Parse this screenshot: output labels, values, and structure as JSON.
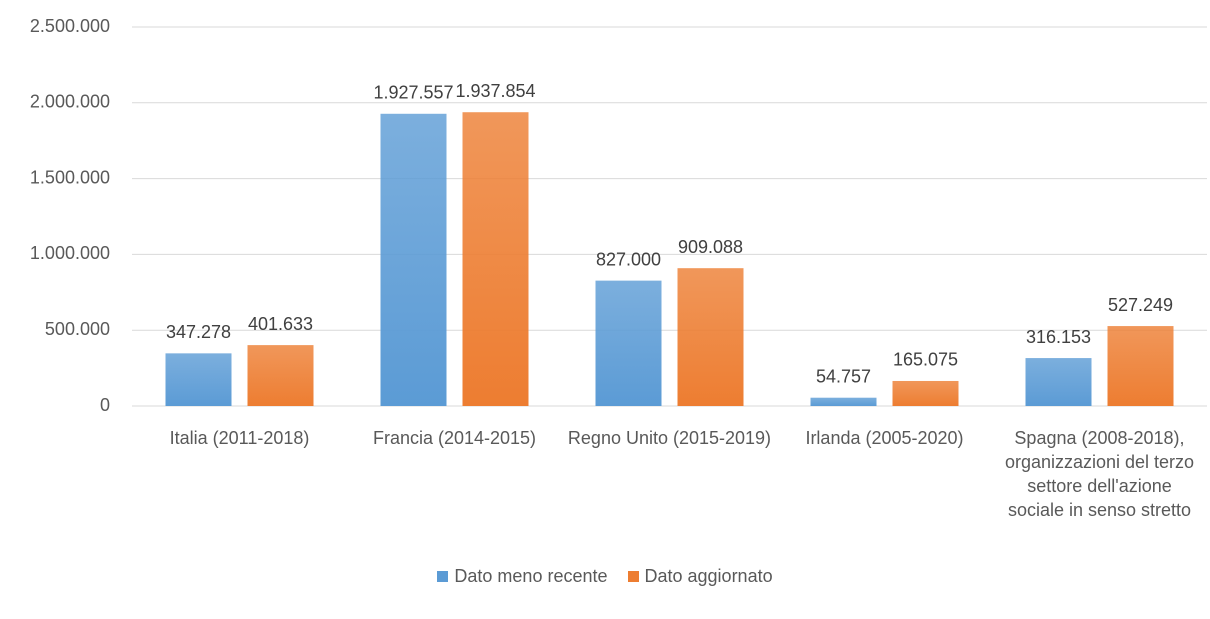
{
  "chart_data": {
    "type": "bar",
    "categories": [
      "Italia (2011-2018)",
      "Francia (2014-2015)",
      "Regno Unito (2015-2019)",
      "Irlanda (2005-2020)",
      "Spagna (2008-2018), organizzazioni del terzo settore dell'azione sociale in senso stretto"
    ],
    "series": [
      {
        "name": "Dato meno recente",
        "color": "#5b9bd5",
        "values": [
          347278,
          1927557,
          827000,
          54757,
          316153
        ],
        "value_labels": [
          "347.278",
          "1.927.557",
          "827.000",
          "54.757",
          "316.153"
        ]
      },
      {
        "name": "Dato aggiornato",
        "color": "#ed7d31",
        "values": [
          401633,
          1937854,
          909088,
          165075,
          527249
        ],
        "value_labels": [
          "401.633",
          "1.937.854",
          "909.088",
          "165.075",
          "527.249"
        ]
      }
    ],
    "ylim": [
      0,
      2500000
    ],
    "yticks": [
      0,
      {
        "value": 500000,
        "label": "500.000"
      },
      {
        "value": 1000000,
        "label": "1.000.000"
      },
      {
        "value": 1500000,
        "label": "1.500.000"
      },
      {
        "value": 2000000,
        "label": "2.000.000"
      },
      {
        "value": 2500000,
        "label": "2.500.000"
      }
    ],
    "grid": true,
    "legend": "bottom"
  }
}
